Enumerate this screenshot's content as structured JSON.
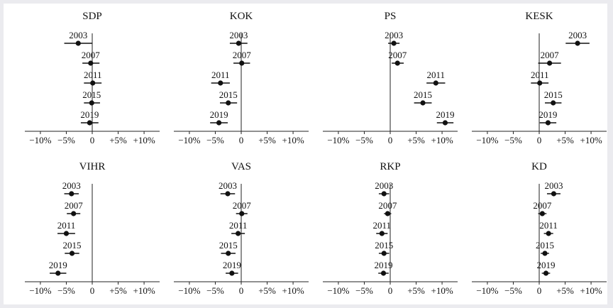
{
  "chart_data": [
    {
      "type": "scatter",
      "title": "SDP",
      "xlim": [
        -13,
        13
      ],
      "xticks": [
        -10,
        -5,
        0,
        5,
        10
      ],
      "tick_labels": [
        "−10%",
        "−5%",
        "0",
        "+5%",
        "+10%"
      ],
      "categories": [
        "2003",
        "2007",
        "2011",
        "2015",
        "2019"
      ],
      "values": [
        -2.7,
        -0.3,
        0.1,
        -0.1,
        -0.5
      ],
      "ci_low": [
        -5.4,
        -1.9,
        -1.6,
        -1.6,
        -2.2
      ],
      "ci_high": [
        0.0,
        1.4,
        1.8,
        1.5,
        1.2
      ]
    },
    {
      "type": "scatter",
      "title": "KOK",
      "xlim": [
        -13,
        13
      ],
      "xticks": [
        -10,
        -5,
        0,
        5,
        10
      ],
      "tick_labels": [
        "−10%",
        "−5%",
        "0",
        "+5%",
        "+10%"
      ],
      "categories": [
        "2003",
        "2007",
        "2011",
        "2015",
        "2019"
      ],
      "values": [
        -0.5,
        0.1,
        -4.0,
        -2.5,
        -4.3
      ],
      "ci_low": [
        -2.2,
        -1.5,
        -5.8,
        -4.1,
        -6.0
      ],
      "ci_high": [
        1.2,
        1.7,
        -2.2,
        -0.8,
        -2.6
      ]
    },
    {
      "type": "scatter",
      "title": "PS",
      "xlim": [
        -13,
        13
      ],
      "xticks": [
        -10,
        -5,
        0,
        5,
        10
      ],
      "tick_labels": [
        "−10%",
        "−5%",
        "0",
        "+5%",
        "+10%"
      ],
      "categories": [
        "2003",
        "2007",
        "2011",
        "2015",
        "2019"
      ],
      "values": [
        0.7,
        1.4,
        8.8,
        6.3,
        10.6
      ],
      "ci_low": [
        -0.4,
        0.3,
        7.0,
        4.6,
        9.0
      ],
      "ci_high": [
        1.8,
        2.6,
        10.6,
        8.0,
        12.2
      ]
    },
    {
      "type": "scatter",
      "title": "KESK",
      "xlim": [
        -13,
        13
      ],
      "xticks": [
        -10,
        -5,
        0,
        5,
        10
      ],
      "tick_labels": [
        "−10%",
        "−5%",
        "0",
        "+5%",
        "+10%"
      ],
      "categories": [
        "2003",
        "2007",
        "2011",
        "2015",
        "2019"
      ],
      "values": [
        7.4,
        2.0,
        0.1,
        2.7,
        1.7
      ],
      "ci_low": [
        5.1,
        -0.2,
        -1.6,
        1.1,
        0.1
      ],
      "ci_high": [
        9.7,
        4.2,
        1.8,
        4.3,
        3.3
      ]
    },
    {
      "type": "scatter",
      "title": "VIHR",
      "xlim": [
        -13,
        13
      ],
      "xticks": [
        -10,
        -5,
        0,
        5,
        10
      ],
      "tick_labels": [
        "−10%",
        "−5%",
        "0",
        "+5%",
        "+10%"
      ],
      "categories": [
        "2003",
        "2007",
        "2011",
        "2015",
        "2019"
      ],
      "values": [
        -4.0,
        -3.6,
        -5.0,
        -3.9,
        -6.6
      ],
      "ci_low": [
        -5.4,
        -4.9,
        -6.7,
        -5.3,
        -8.2
      ],
      "ci_high": [
        -2.6,
        -2.3,
        -3.3,
        -2.5,
        -5.0
      ]
    },
    {
      "type": "scatter",
      "title": "VAS",
      "xlim": [
        -13,
        13
      ],
      "xticks": [
        -10,
        -5,
        0,
        5,
        10
      ],
      "tick_labels": [
        "−10%",
        "−5%",
        "0",
        "+5%",
        "+10%"
      ],
      "categories": [
        "2003",
        "2007",
        "2011",
        "2015",
        "2019"
      ],
      "values": [
        -2.6,
        0.1,
        -0.6,
        -2.5,
        -1.8
      ],
      "ci_low": [
        -4.0,
        -1.0,
        -1.9,
        -3.9,
        -3.0
      ],
      "ci_high": [
        -1.2,
        1.2,
        0.7,
        -1.1,
        -0.6
      ]
    },
    {
      "type": "scatter",
      "title": "RKP",
      "xlim": [
        -13,
        13
      ],
      "xticks": [
        -10,
        -5,
        0,
        5,
        10
      ],
      "tick_labels": [
        "−10%",
        "−5%",
        "0",
        "+5%",
        "+10%"
      ],
      "categories": [
        "2003",
        "2007",
        "2011",
        "2015",
        "2019"
      ],
      "values": [
        -1.2,
        -0.5,
        -1.6,
        -1.2,
        -1.3
      ],
      "ci_low": [
        -2.2,
        -1.2,
        -2.7,
        -2.2,
        -2.3
      ],
      "ci_high": [
        -0.2,
        0.2,
        -0.5,
        -0.2,
        -0.3
      ]
    },
    {
      "type": "scatter",
      "title": "KD",
      "xlim": [
        -13,
        13
      ],
      "xticks": [
        -10,
        -5,
        0,
        5,
        10
      ],
      "tick_labels": [
        "−10%",
        "−5%",
        "0",
        "+5%",
        "+10%"
      ],
      "categories": [
        "2003",
        "2007",
        "2011",
        "2015",
        "2019"
      ],
      "values": [
        2.8,
        0.6,
        1.8,
        1.1,
        1.3
      ],
      "ci_low": [
        1.5,
        -0.2,
        0.9,
        0.3,
        0.5
      ],
      "ci_high": [
        4.1,
        1.4,
        2.7,
        1.9,
        2.1
      ]
    }
  ]
}
